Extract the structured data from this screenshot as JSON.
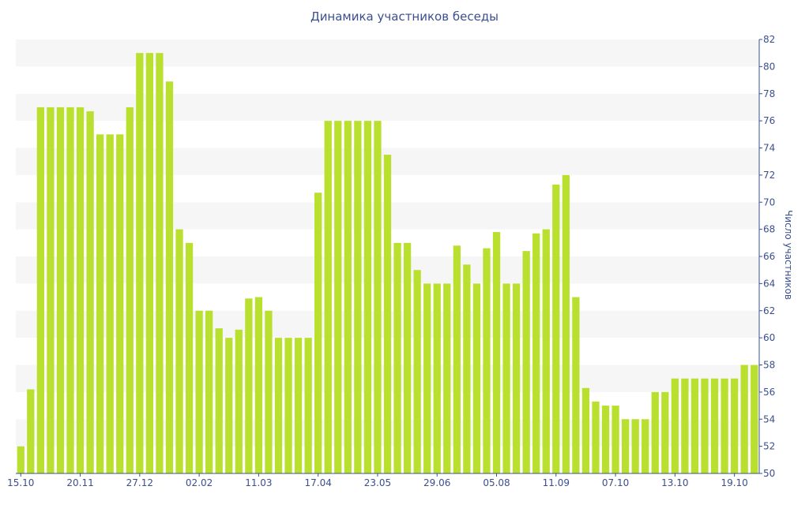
{
  "chart_data": {
    "type": "bar",
    "title": "Динамика участников беседы",
    "xlabel": "",
    "ylabel": "Число участников",
    "ylim": [
      50,
      82
    ],
    "y_ticks": [
      50,
      52,
      54,
      56,
      58,
      60,
      62,
      64,
      66,
      68,
      70,
      72,
      74,
      76,
      78,
      80,
      82
    ],
    "y_axis_side": "right",
    "x_tick_labels": [
      {
        "index": 0,
        "label": "15.10"
      },
      {
        "index": 6,
        "label": "20.11"
      },
      {
        "index": 12,
        "label": "27.12"
      },
      {
        "index": 18,
        "label": "02.02"
      },
      {
        "index": 24,
        "label": "11.03"
      },
      {
        "index": 30,
        "label": "17.04"
      },
      {
        "index": 36,
        "label": "23.05"
      },
      {
        "index": 42,
        "label": "29.06"
      },
      {
        "index": 48,
        "label": "05.08"
      },
      {
        "index": 54,
        "label": "11.09"
      },
      {
        "index": 60,
        "label": "07.10"
      },
      {
        "index": 66,
        "label": "13.10"
      },
      {
        "index": 72,
        "label": "19.10"
      }
    ],
    "values": [
      52,
      56.2,
      77,
      77,
      77,
      77,
      77,
      76.7,
      75,
      75,
      75,
      77,
      81,
      81,
      81,
      78.9,
      68,
      67,
      62,
      62,
      60.7,
      60,
      60.6,
      62.9,
      63,
      62,
      60,
      60,
      60,
      60,
      70.7,
      76,
      76,
      76,
      76,
      76,
      76,
      73.5,
      67,
      67,
      65,
      64,
      64,
      64,
      66.8,
      65.4,
      64,
      66.6,
      67.8,
      64,
      64,
      66.4,
      67.7,
      68,
      71.3,
      72,
      63,
      56.3,
      55.3,
      55,
      55,
      54,
      54,
      54,
      56,
      56,
      57,
      57,
      57,
      57,
      57,
      57,
      57,
      58,
      58
    ],
    "bar_color": "#b9e02e",
    "grid": true,
    "band_colors": [
      "#f6f6f6",
      "#ffffff"
    ],
    "legend": "none"
  }
}
